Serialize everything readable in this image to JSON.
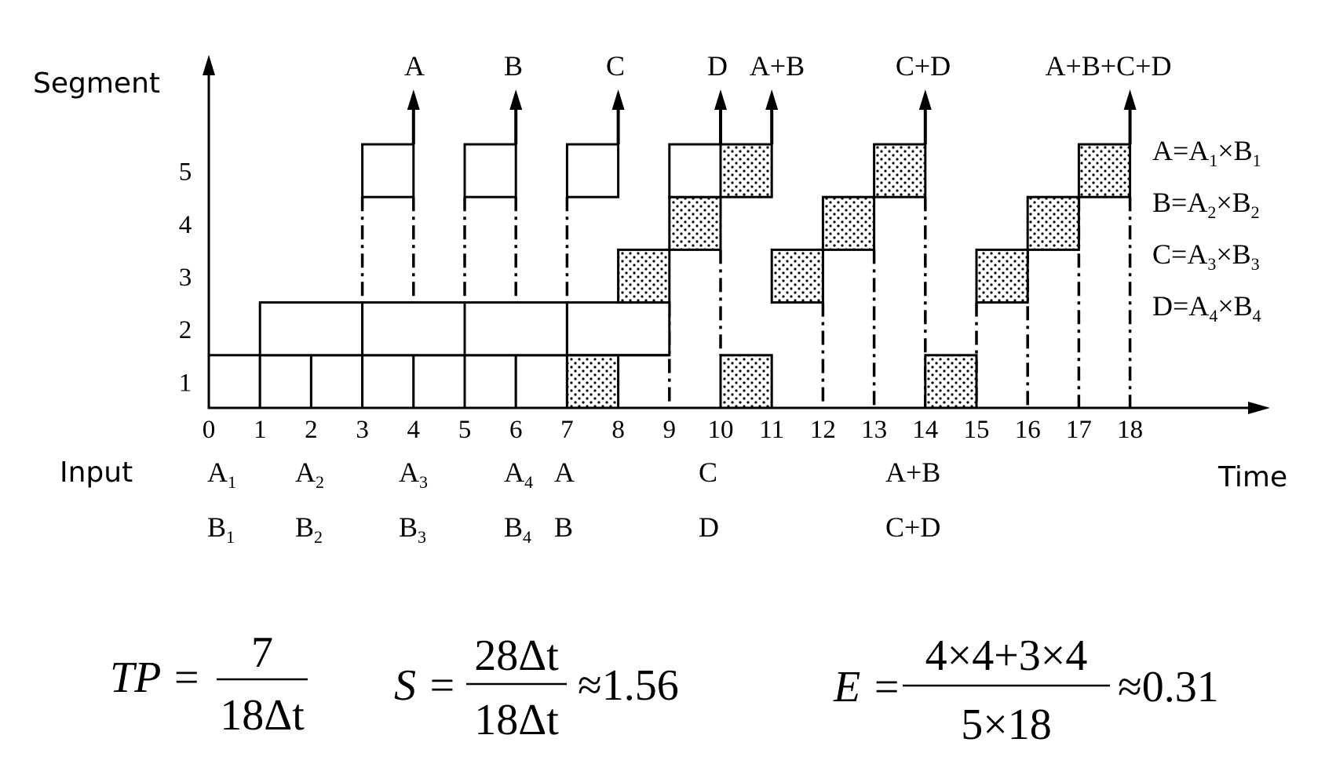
{
  "axis": {
    "y_label": "Segment",
    "x_label": "Time",
    "input_label": "Input",
    "y_ticks": [
      "1",
      "2",
      "3",
      "4",
      "5"
    ],
    "x_ticks": [
      "0",
      "1",
      "2",
      "3",
      "4",
      "5",
      "6",
      "7",
      "8",
      "9",
      "10",
      "11",
      "12",
      "13",
      "14",
      "15",
      "16",
      "17",
      "18"
    ]
  },
  "outputs": [
    "A",
    "B",
    "C",
    "D",
    "A+B",
    "C+D",
    "A+B+C+D"
  ],
  "inputs_row1": [
    {
      "base": "A",
      "sub": "1"
    },
    {
      "base": "A",
      "sub": "2"
    },
    {
      "base": "A",
      "sub": "3"
    },
    {
      "base": "A",
      "sub": "4"
    },
    {
      "base": "A",
      "sub": ""
    },
    {
      "base": "C",
      "sub": ""
    },
    {
      "base": "A+B",
      "sub": ""
    }
  ],
  "inputs_row2": [
    {
      "base": "B",
      "sub": "1"
    },
    {
      "base": "B",
      "sub": "2"
    },
    {
      "base": "B",
      "sub": "3"
    },
    {
      "base": "B",
      "sub": "4"
    },
    {
      "base": "B",
      "sub": ""
    },
    {
      "base": "D",
      "sub": ""
    },
    {
      "base": "C+D",
      "sub": ""
    }
  ],
  "legend": [
    {
      "lhs": "A=A",
      "s1": "1",
      "mid": "×B",
      "s2": "1"
    },
    {
      "lhs": "B=A",
      "s1": "2",
      "mid": "×B",
      "s2": "2"
    },
    {
      "lhs": "C=A",
      "s1": "3",
      "mid": "×B",
      "s2": "3"
    },
    {
      "lhs": "D=A",
      "s1": "4",
      "mid": "×B",
      "s2": "4"
    }
  ],
  "formulas": {
    "tp": {
      "lhs": "TP =",
      "num": "7",
      "den": "18Δt",
      "rhs": ""
    },
    "s": {
      "lhs": "S =",
      "num": "28Δt",
      "den": "18Δt",
      "rhs": "≈1.56"
    },
    "e": {
      "lhs": "E =",
      "num": "4×4+3×4",
      "den": "5×18",
      "rhs": "≈0.31"
    }
  }
}
